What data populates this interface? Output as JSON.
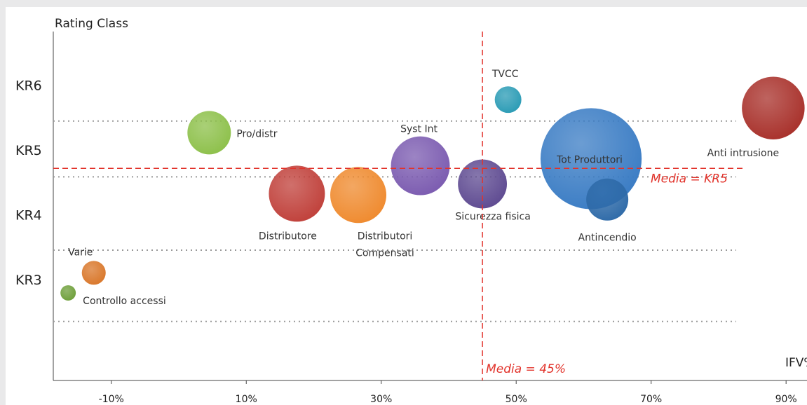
{
  "chart_data": {
    "type": "bubble",
    "y_label": "Rating Class",
    "x_label": "IFV%",
    "labels": [
      "TVCC",
      "Anti intrusione",
      "Pro/distr",
      "Syst Int",
      "Tot Produttori",
      "Antincendio",
      "Sicurezza fisica",
      "Distributore",
      "Distributori Compensati",
      "Varie",
      "Controllo accessi"
    ],
    "x": [
      48.8,
      88.1,
      4.5,
      35.8,
      61.1,
      63.5,
      45.0,
      17.5,
      26.6,
      -12.6,
      -16.4
    ],
    "y": [
      5.79,
      5.66,
      5.28,
      4.77,
      4.88,
      4.25,
      4.49,
      4.34,
      4.32,
      3.12,
      2.81
    ],
    "sizes": [
      3.6,
      20,
      9.6,
      17.6,
      52,
      9,
      12.2,
      16,
      16,
      2.9,
      1.2
    ],
    "colors": [
      "#2a9bb5",
      "#a8302a",
      "#8dc04a",
      "#7b5bb0",
      "#3a7cc4",
      "#2e6aa8",
      "#5e4a91",
      "#c0403a",
      "#ef8a2e",
      "#d9772a",
      "#6e9f3a"
    ],
    "xlim": [
      -18.6,
      93.1
    ],
    "ylim": [
      1.46,
      6.84
    ],
    "xticks": [
      {
        "value": -10,
        "label": "-10%"
      },
      {
        "value": 10,
        "label": "10%"
      },
      {
        "value": 30,
        "label": "30%"
      },
      {
        "value": 50,
        "label": "50%"
      },
      {
        "value": 70,
        "label": "70%"
      },
      {
        "value": 90,
        "label": "90%"
      }
    ],
    "yticks": [
      {
        "value": 6,
        "label": "KR6"
      },
      {
        "value": 5,
        "label": "KR5"
      },
      {
        "value": 4,
        "label": "KR4"
      },
      {
        "value": 3,
        "label": "KR3"
      }
    ],
    "separators": [
      5.46,
      4.6,
      3.47,
      2.37
    ],
    "reference_lines": [
      {
        "axis": "x",
        "value": 45,
        "label": "Media = 45%"
      },
      {
        "axis": "y",
        "value": 4.73,
        "label": "Media = KR5"
      }
    ]
  }
}
